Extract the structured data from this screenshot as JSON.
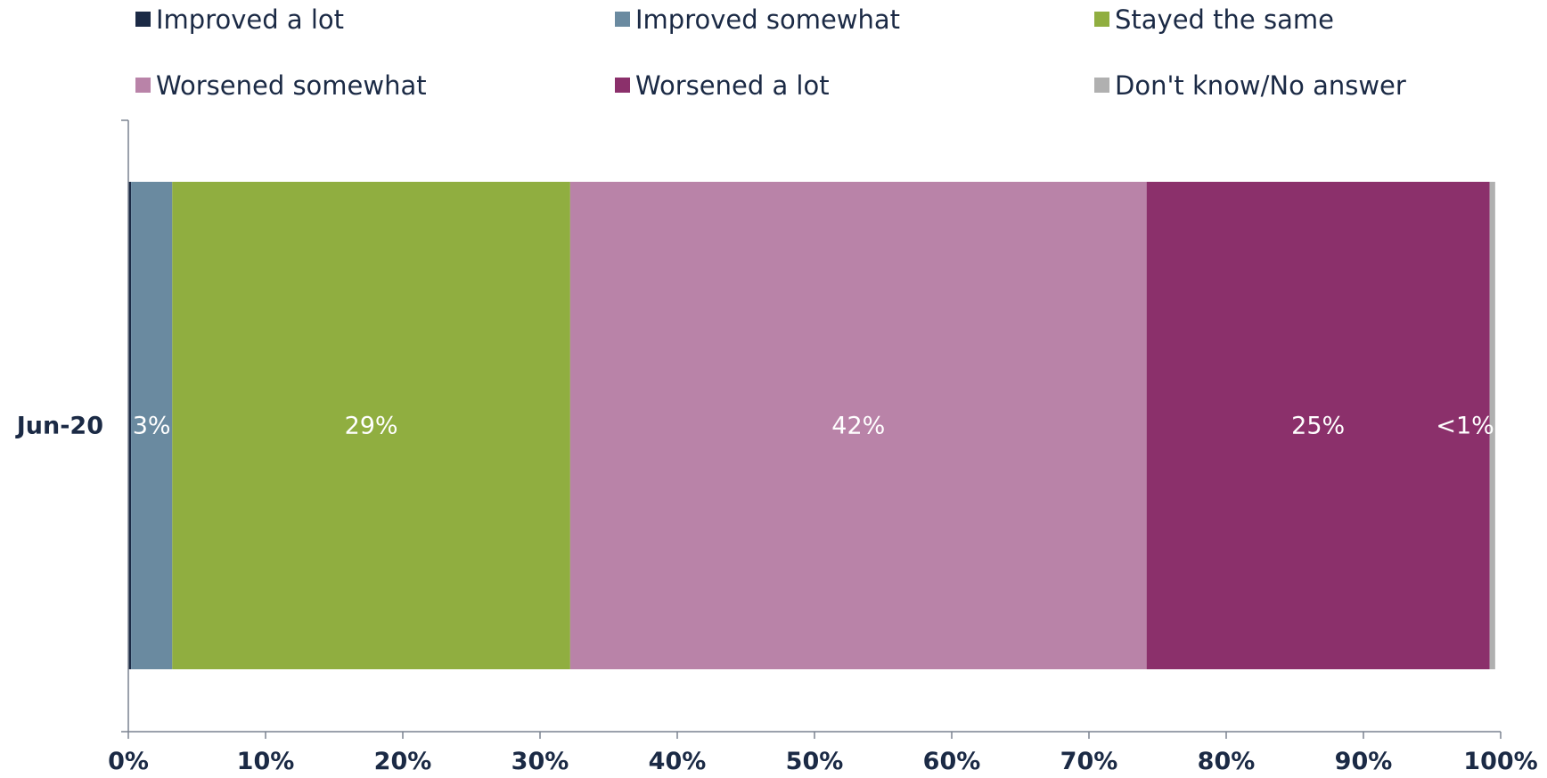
{
  "chart_data": {
    "type": "bar",
    "orientation": "horizontal",
    "stacked": true,
    "categories": [
      "Jun-20"
    ],
    "series": [
      {
        "name": "Improved a lot",
        "values": [
          0.2
        ],
        "color": "#1b2a45",
        "label": ""
      },
      {
        "name": "Improved somewhat",
        "values": [
          3
        ],
        "color": "#6a8aa0",
        "label": "3%"
      },
      {
        "name": "Stayed the same",
        "values": [
          29
        ],
        "color": "#90ae40",
        "label": "29%"
      },
      {
        "name": "Worsened somewhat",
        "values": [
          42
        ],
        "color": "#b983a8",
        "label": "42%"
      },
      {
        "name": "Worsened a lot",
        "values": [
          25
        ],
        "color": "#8b306b",
        "label": "25%"
      },
      {
        "name": "Don't know/No answer",
        "values": [
          0.4
        ],
        "color": "#b0b0b0",
        "label": "<1%"
      }
    ],
    "x_ticks": [
      "0%",
      "10%",
      "20%",
      "30%",
      "40%",
      "50%",
      "60%",
      "70%",
      "80%",
      "90%",
      "100%"
    ],
    "xlim": [
      0,
      100
    ],
    "grid": false,
    "legend_position": "top"
  }
}
